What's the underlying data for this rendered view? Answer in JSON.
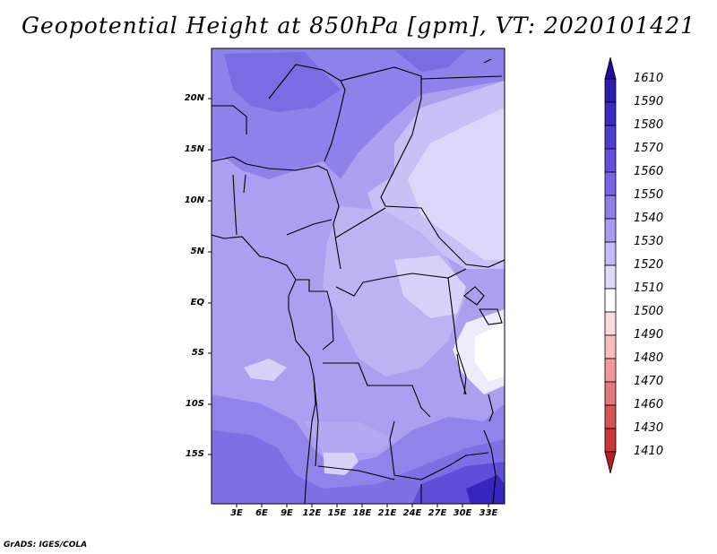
{
  "title": "Geopotential Height at 850hPa [gpm], VT: 2020101421",
  "credit": "GrADS: IGES/COLA",
  "lat_labels": [
    "20N",
    "15N",
    "10N",
    "5N",
    "EQ",
    "5S",
    "10S",
    "15S"
  ],
  "lon_labels": [
    "3E",
    "6E",
    "9E",
    "12E",
    "15E",
    "18E",
    "21E",
    "24E",
    "27E",
    "30E",
    "33E"
  ],
  "colorbar": {
    "labels": [
      "1610",
      "1590",
      "1580",
      "1570",
      "1560",
      "1550",
      "1540",
      "1530",
      "1520",
      "1510",
      "1500",
      "1490",
      "1480",
      "1470",
      "1460",
      "1430",
      "1410"
    ],
    "colors": [
      "#1d0e9a",
      "#2c1caf",
      "#3b2bc2",
      "#4d3dd0",
      "#6150db",
      "#7566e3",
      "#8c7fea",
      "#a79df0",
      "#c3bcf4",
      "#dedbf9",
      "#ffffff",
      "#fadcdc",
      "#f5bdbd",
      "#ee9a9a",
      "#e47878",
      "#d85454",
      "#c83636",
      "#b22020"
    ]
  }
}
